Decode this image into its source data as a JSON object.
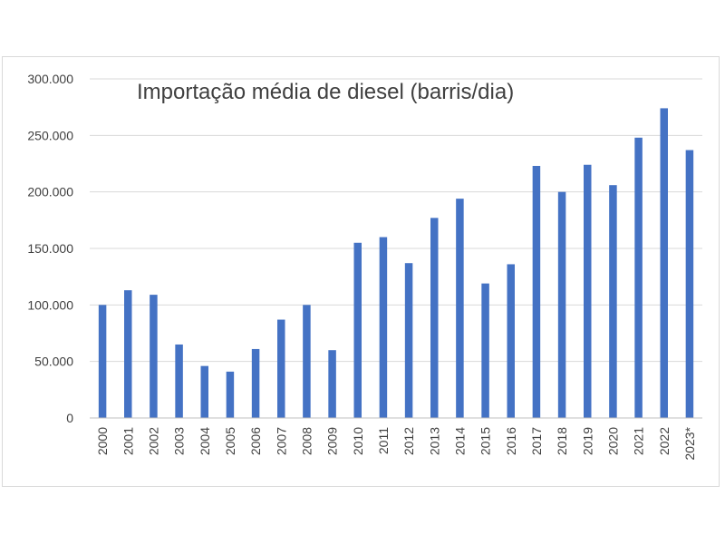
{
  "chart_data": {
    "type": "bar",
    "title": "Importação média de diesel (barris/dia)",
    "xlabel": "",
    "ylabel": "",
    "ylim": [
      0,
      300000
    ],
    "yticks": [
      0,
      50000,
      100000,
      150000,
      200000,
      250000,
      300000
    ],
    "ytick_labels": [
      "0",
      "50.000",
      "100.000",
      "150.000",
      "200.000",
      "250.000",
      "300.000"
    ],
    "grid": true,
    "legend": "none",
    "bar_color": "#4472c4",
    "categories": [
      "2000",
      "2001",
      "2002",
      "2003",
      "2004",
      "2005",
      "2006",
      "2007",
      "2008",
      "2009",
      "2010",
      "2011",
      "2012",
      "2013",
      "2014",
      "2015",
      "2016",
      "2017",
      "2018",
      "2019",
      "2020",
      "2021",
      "2022",
      "2023*"
    ],
    "values": [
      100000,
      113000,
      109000,
      65000,
      46000,
      41000,
      61000,
      87000,
      100000,
      60000,
      155000,
      160000,
      137000,
      177000,
      194000,
      119000,
      136000,
      223000,
      200000,
      224000,
      206000,
      248000,
      274000,
      237000
    ]
  }
}
